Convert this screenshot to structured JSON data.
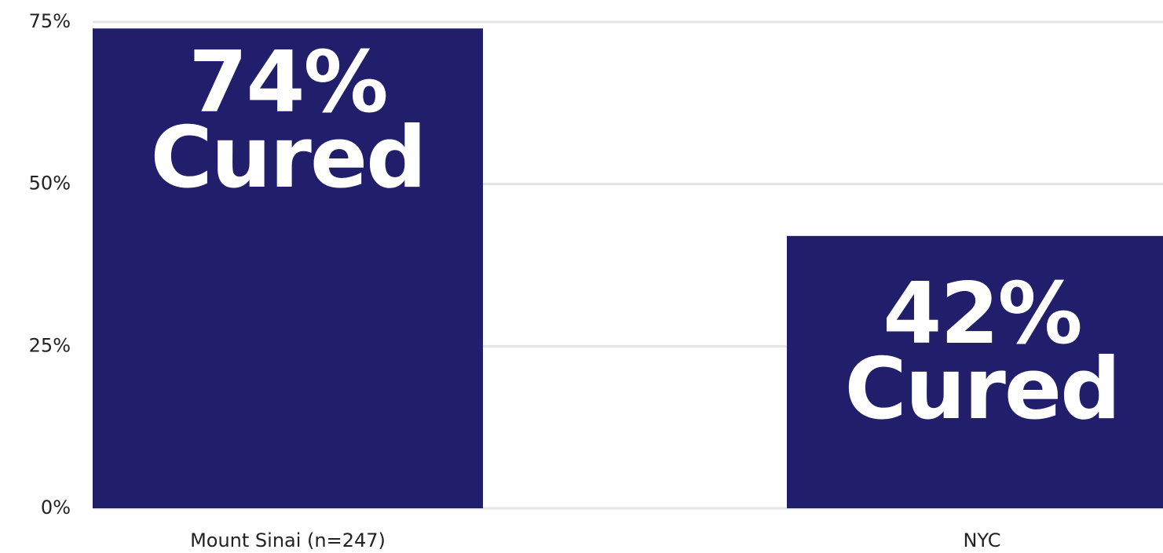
{
  "chart_data": {
    "type": "bar",
    "categories": [
      "Mount Sinai (n=247)",
      "NYC"
    ],
    "values": [
      74,
      42
    ],
    "value_labels": [
      "74% Cured",
      "42% Cured"
    ],
    "color": "#211f6b",
    "ylim": [
      0,
      75
    ],
    "yticks": [
      {
        "value": 0,
        "label": "0%"
      },
      {
        "value": 25,
        "label": "25%"
      },
      {
        "value": 50,
        "label": "50%"
      },
      {
        "value": 75,
        "label": "75%"
      }
    ],
    "grid": true
  }
}
